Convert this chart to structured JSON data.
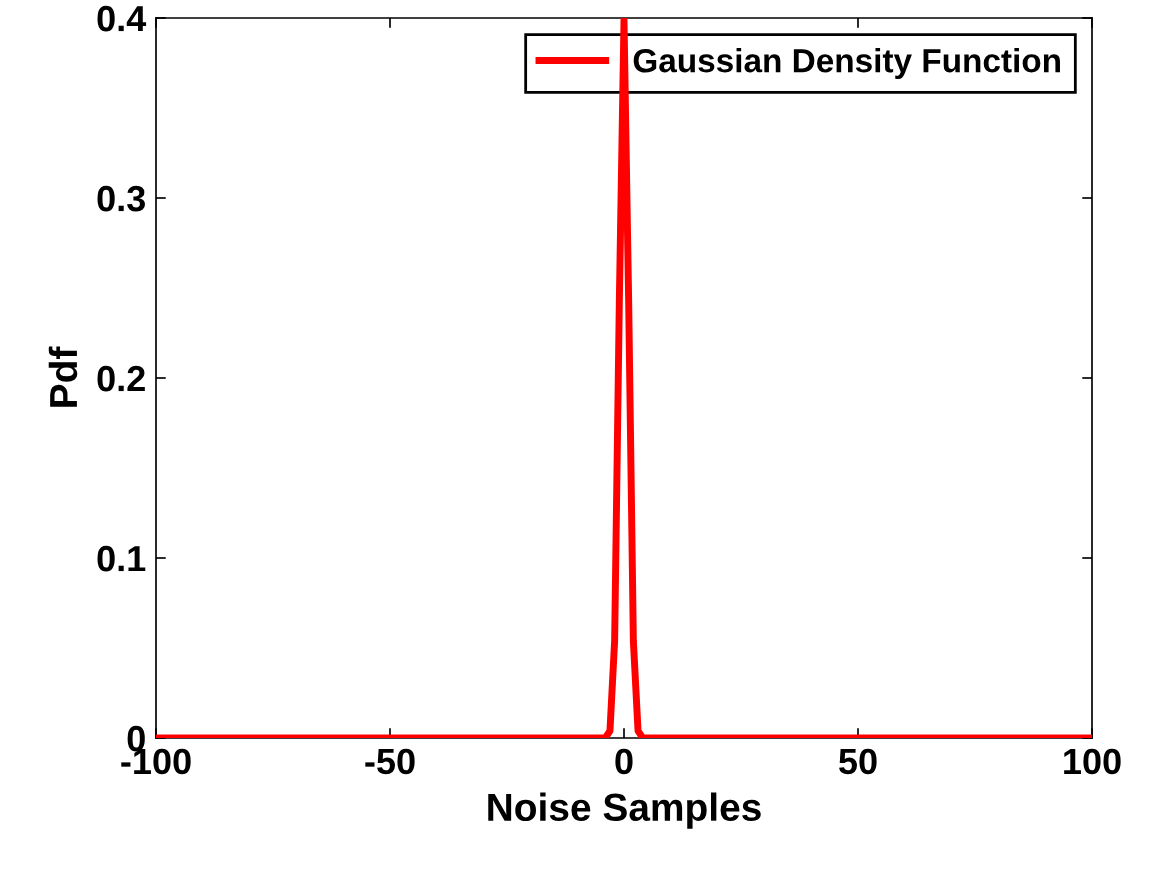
{
  "chart_data": {
    "type": "line",
    "xlabel": "Noise Samples",
    "ylabel": "Pdf",
    "x": [
      -100,
      -4,
      -3,
      -2,
      -1,
      0,
      1,
      2,
      3,
      4,
      100
    ],
    "series": [
      {
        "name": "Gaussian Density Function",
        "color": "#ff0000",
        "values": [
          0,
          0,
          0.004,
          0.054,
          0.242,
          0.399,
          0.242,
          0.054,
          0.004,
          0,
          0
        ]
      }
    ],
    "xlim": [
      -100,
      100
    ],
    "xticks": [
      -100,
      -50,
      0,
      50,
      100
    ],
    "ylim": [
      0,
      0.4
    ],
    "yticks": [
      0,
      0.1,
      0.2,
      0.3,
      0.4
    ],
    "legend": "top right",
    "grid": false,
    "marker": "none",
    "line_style": "solid"
  }
}
